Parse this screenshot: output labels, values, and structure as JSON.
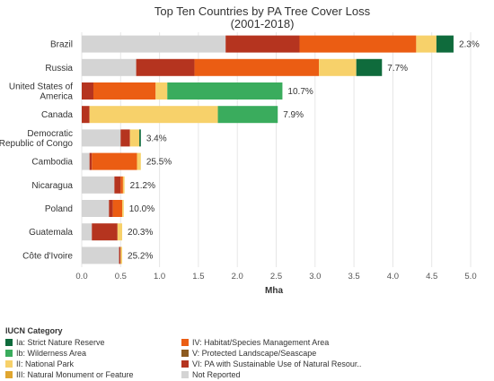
{
  "chart_data": {
    "type": "bar",
    "orientation": "horizontal",
    "stacked": true,
    "title_line1": "Top Ten Countries by PA Tree Cover Loss",
    "title_line2": "(2001-2018)",
    "xlabel": "Mha",
    "xlim": [
      0,
      5
    ],
    "xticks": [
      "0.0",
      "0.5",
      "1.0",
      "1.5",
      "2.0",
      "2.5",
      "3.0",
      "3.5",
      "4.0",
      "4.5",
      "5.0"
    ],
    "grid": true,
    "legend_position": "bottom",
    "categories": [
      {
        "label_lines": [
          "Brazil"
        ],
        "pct": "2.3%"
      },
      {
        "label_lines": [
          "Russia"
        ],
        "pct": "7.7%"
      },
      {
        "label_lines": [
          "United States of",
          "America"
        ],
        "pct": "10.7%"
      },
      {
        "label_lines": [
          "Canada"
        ],
        "pct": "7.9%"
      },
      {
        "label_lines": [
          "Democratic",
          "Republic of Congo"
        ],
        "pct": "3.4%"
      },
      {
        "label_lines": [
          "Cambodia"
        ],
        "pct": "25.5%"
      },
      {
        "label_lines": [
          "Nicaragua"
        ],
        "pct": "21.2%"
      },
      {
        "label_lines": [
          "Poland"
        ],
        "pct": "10.0%"
      },
      {
        "label_lines": [
          "Guatemala"
        ],
        "pct": "20.3%"
      },
      {
        "label_lines": [
          "Côte d'Ivoire"
        ],
        "pct": "25.2%"
      }
    ],
    "series": [
      {
        "key": "not_reported",
        "color": "#d4d4d4",
        "values": [
          1.85,
          0.7,
          0.0,
          0.0,
          0.5,
          0.1,
          0.42,
          0.35,
          0.13,
          0.48
        ]
      },
      {
        "key": "vi",
        "color": "#b5341f",
        "values": [
          0.95,
          0.75,
          0.15,
          0.1,
          0.12,
          0.03,
          0.08,
          0.05,
          0.33,
          0.02
        ]
      },
      {
        "key": "iv",
        "color": "#eb5d13",
        "values": [
          1.5,
          1.6,
          0.8,
          0.0,
          0.0,
          0.58,
          0.03,
          0.12,
          0.0,
          0.0
        ]
      },
      {
        "key": "ii",
        "color": "#f7d16a",
        "values": [
          0.26,
          0.48,
          0.15,
          1.65,
          0.12,
          0.05,
          0.02,
          0.02,
          0.06,
          0.02
        ]
      },
      {
        "key": "ib",
        "color": "#3aac5d",
        "values": [
          0.0,
          0.0,
          1.48,
          0.77,
          0.0,
          0.0,
          0.0,
          0.0,
          0.0,
          0.0
        ]
      },
      {
        "key": "ia",
        "color": "#0f6b3c",
        "values": [
          0.22,
          0.33,
          0.0,
          0.0,
          0.02,
          0.0,
          0.0,
          0.0,
          0.0,
          0.0
        ]
      }
    ]
  },
  "legend": {
    "title": "IUCN Category",
    "items": [
      {
        "label": "Ia: Strict Nature Reserve",
        "color": "#0f6b3c"
      },
      {
        "label": "IV: Habitat/Species Management Area",
        "color": "#eb5d13"
      },
      {
        "label": "Ib: Wilderness Area",
        "color": "#3aac5d"
      },
      {
        "label": "V: Protected Landscape/Seascape",
        "color": "#8c5a20"
      },
      {
        "label": "II: National Park",
        "color": "#f7d16a"
      },
      {
        "label": "VI: PA with Sustainable Use of Natural Resour..",
        "color": "#b5341f"
      },
      {
        "label": "III: Natural Monument or Feature",
        "color": "#e0a630"
      },
      {
        "label": "Not Reported",
        "color": "#d4d4d4"
      }
    ]
  }
}
